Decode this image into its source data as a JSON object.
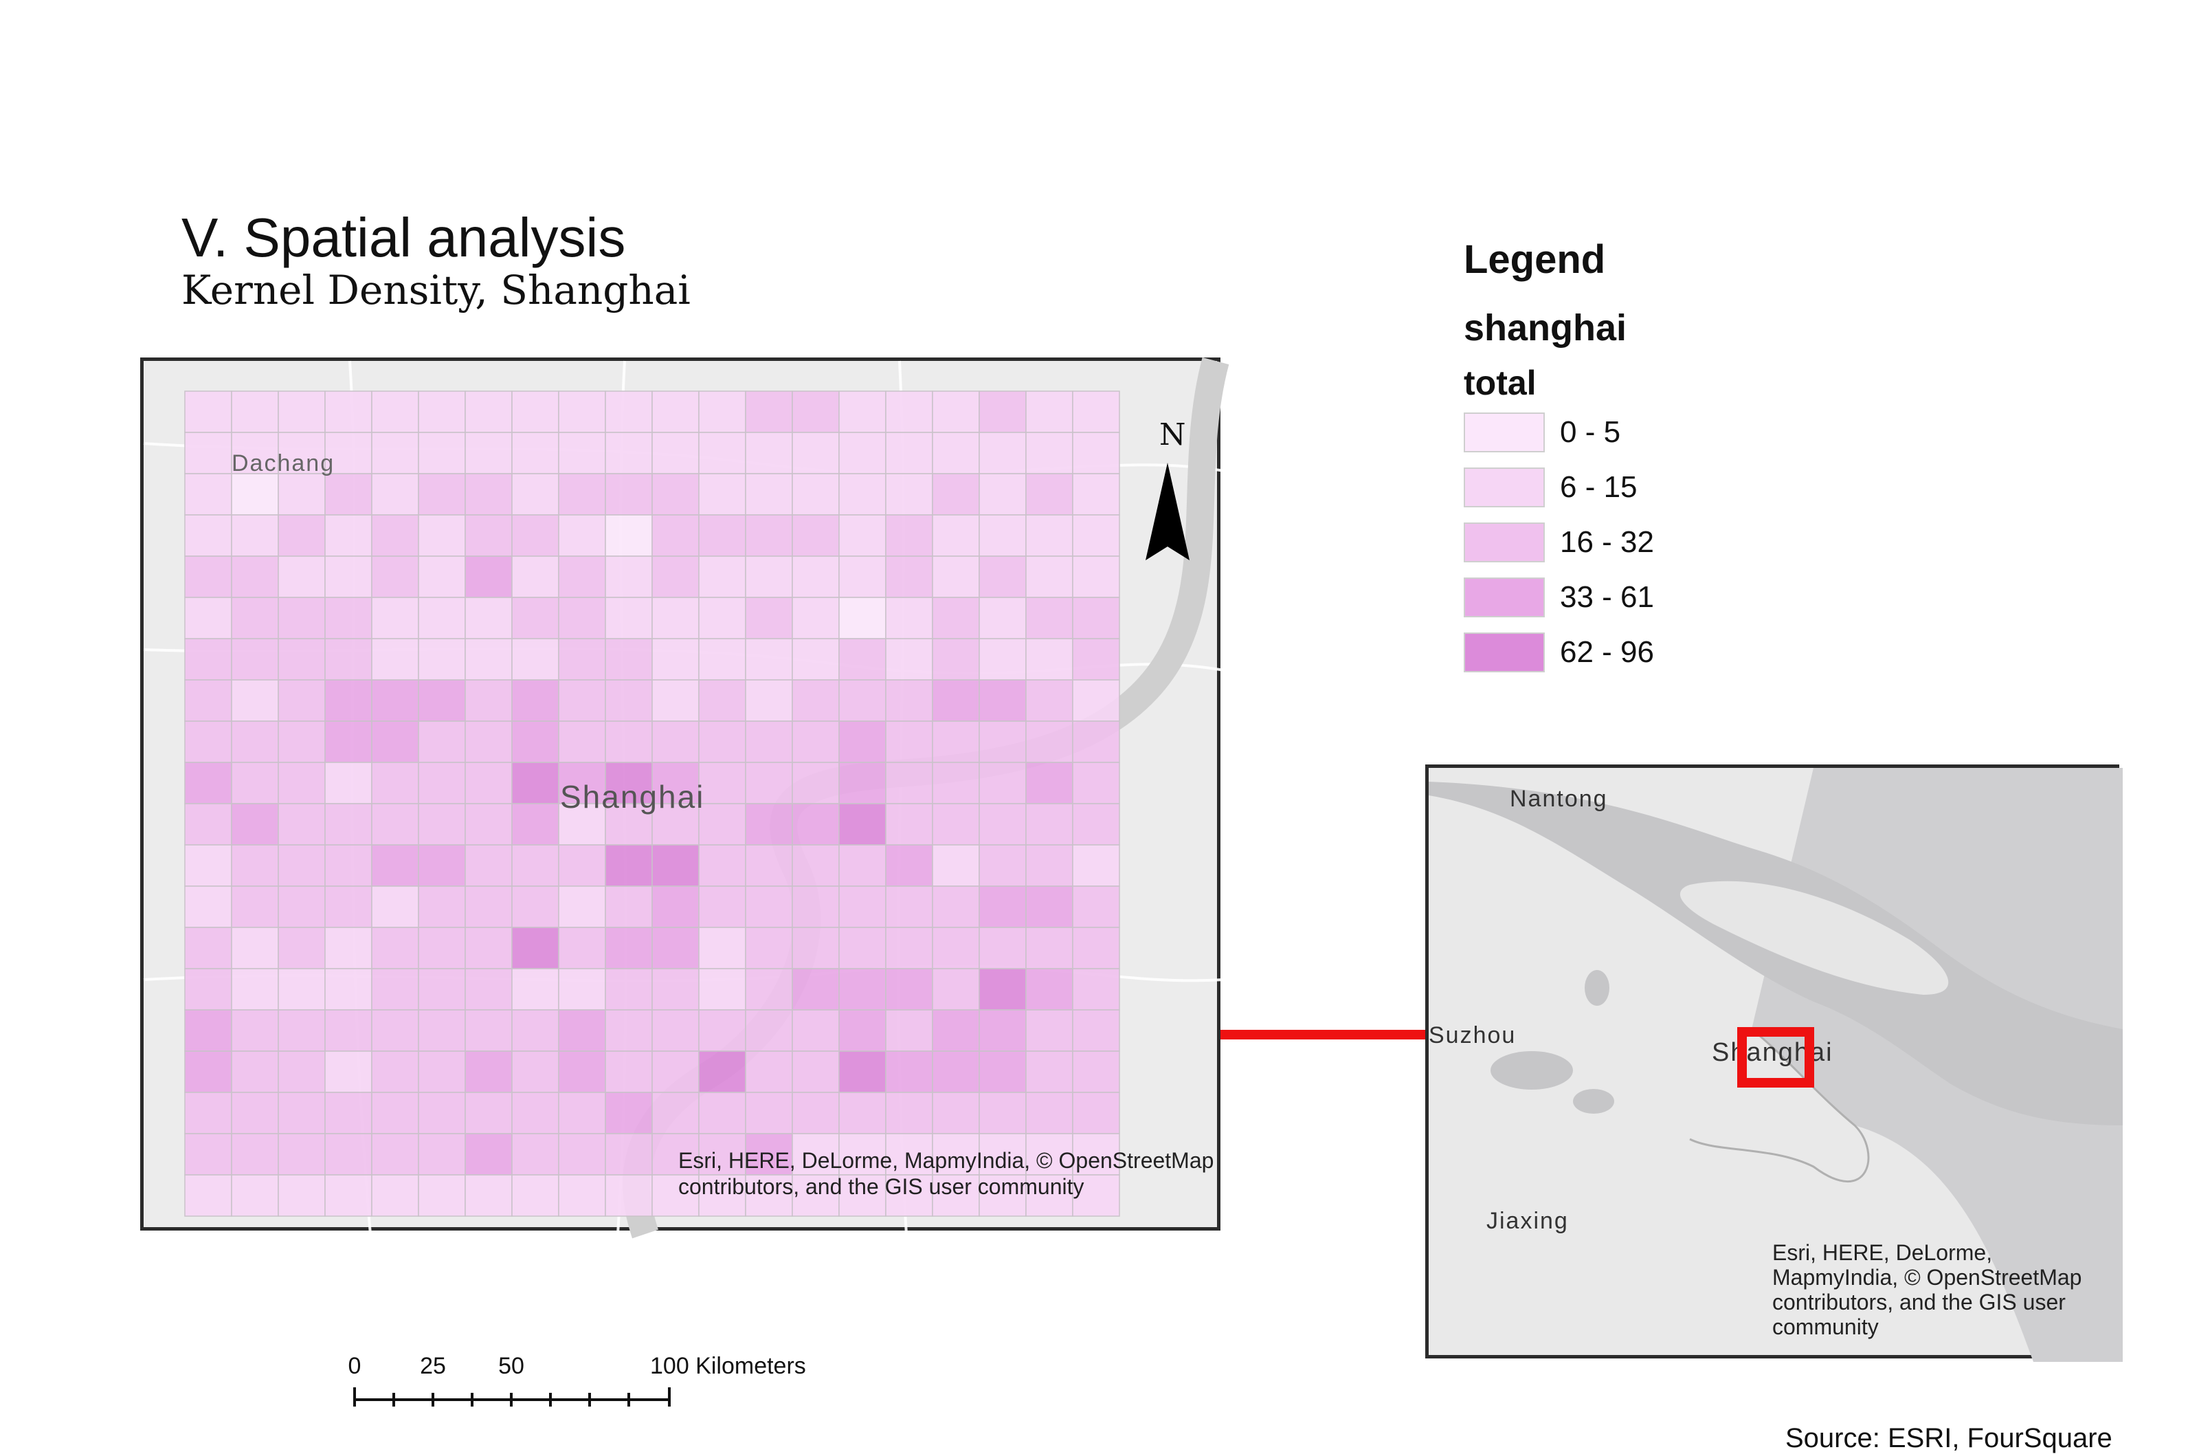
{
  "header": {
    "title": "V. Spatial analysis",
    "subtitle": "Kernel Density, Shanghai"
  },
  "main_map": {
    "place_labels": {
      "dachang": "Dachang",
      "shanghai": "Shanghai"
    },
    "north_label": "N",
    "attribution_line1": "Esri, HERE, DeLorme, MapmyIndia, © OpenStreetMap",
    "attribution_line2": "contributors, and the GIS user community",
    "grid": {
      "rows": 20,
      "cols": 20,
      "classes": [
        "1111111111112211121111111111111111111111101212212221111121211121212210222212111122112131212111121211122211122111210121222222111122111121211221233323221212223321222332232222223222223221222434322232223223222223122233422222122233222442222312211222122212322222233221212224233122222222211122211221233324323222222232222232332232212232322422433322222222222322222222222222223222223"
      ]
    }
  },
  "legend": {
    "title": "Legend",
    "layer": "shanghai",
    "field": "total",
    "classes": [
      {
        "label": "0 - 5",
        "color": "#fbe7fb"
      },
      {
        "label": "6 - 15",
        "color": "#f6d6f5"
      },
      {
        "label": "16 - 32",
        "color": "#f0c1ee"
      },
      {
        "label": "33 - 61",
        "color": "#e8a8e6"
      },
      {
        "label": "62 - 96",
        "color": "#dc8bda"
      }
    ]
  },
  "inset_map": {
    "place_labels": {
      "nantong": "Nantong",
      "suzhou": "Suzhou",
      "shanghai": "Shanghai",
      "jiaxing": "Jiaxing"
    },
    "attribution": [
      "Esri, HERE, DeLorme,",
      "MapmyIndia, © OpenStreetMap",
      "contributors, and the GIS user",
      "community"
    ],
    "highlight_color": "#ee1111"
  },
  "scale_bar": {
    "ticks": [
      "0",
      "25",
      "50",
      "100 Kilometers"
    ]
  },
  "source": "Source: ESRI, FourSquare"
}
